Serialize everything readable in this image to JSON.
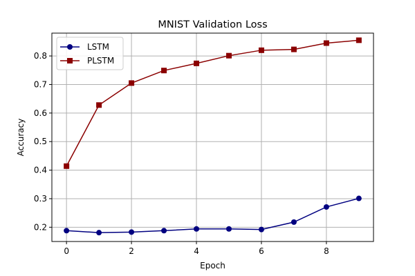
{
  "chart_data": {
    "type": "line",
    "title": "MNIST Validation Loss",
    "xlabel": "Epoch",
    "ylabel": "Accuracy",
    "xlim": [
      -0.45,
      9.45
    ],
    "ylim": [
      0.15,
      0.88
    ],
    "grid": true,
    "legend_position": "top-left",
    "x": [
      0,
      1,
      2,
      3,
      4,
      5,
      6,
      7,
      8,
      9
    ],
    "xticks": [
      0,
      2,
      4,
      6,
      8
    ],
    "yticks": [
      0.2,
      0.3,
      0.4,
      0.5,
      0.6,
      0.7,
      0.8
    ],
    "xtick_labels": [
      "0",
      "2",
      "4",
      "6",
      "8"
    ],
    "ytick_labels": [
      "0.2",
      "0.3",
      "0.4",
      "0.5",
      "0.6",
      "0.7",
      "0.8"
    ],
    "series": [
      {
        "name": "LSTM",
        "color": "#000080",
        "marker": "circle",
        "values": [
          0.188,
          0.181,
          0.183,
          0.188,
          0.194,
          0.194,
          0.192,
          0.218,
          0.271,
          0.301
        ]
      },
      {
        "name": "PLSTM",
        "color": "#8b0000",
        "marker": "square",
        "values": [
          0.414,
          0.628,
          0.705,
          0.749,
          0.774,
          0.801,
          0.82,
          0.823,
          0.845,
          0.855
        ]
      }
    ]
  }
}
